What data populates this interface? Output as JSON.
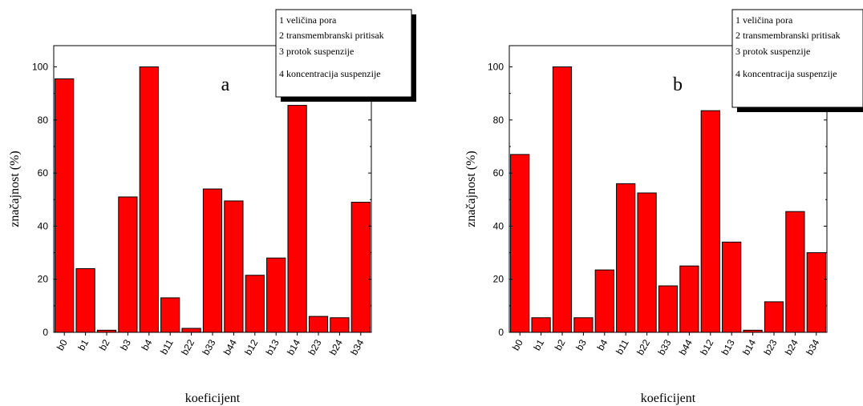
{
  "panels": [
    {
      "panel_label": "a",
      "legend": [
        "1 veličina pora",
        "2 transmembranski pritisak",
        "3 protok suspenzije",
        "4 koncentracija suspenzije"
      ]
    },
    {
      "panel_label": "b",
      "legend": [
        "1 veličina pora",
        "2 transmembranski pritisak",
        "3 protok suspenzije",
        "4 koncentracija suspenzije"
      ]
    }
  ],
  "chart_data": [
    {
      "type": "bar",
      "xlabel": "koeficijent",
      "ylabel": "značajnost (%)",
      "ylim": [
        0,
        108
      ],
      "yticks": [
        0,
        20,
        40,
        60,
        80,
        100
      ],
      "categories": [
        "b0",
        "b1",
        "b2",
        "b3",
        "b4",
        "b11",
        "b22",
        "b33",
        "b44",
        "b12",
        "b13",
        "b14",
        "b23",
        "b24",
        "b34"
      ],
      "values": [
        95.5,
        24,
        0.8,
        51,
        100,
        13,
        1.5,
        54,
        49.5,
        21.5,
        28,
        85.5,
        6,
        5.5,
        49
      ],
      "bar_color": "#ff0000",
      "legend_placement": "top-right"
    },
    {
      "type": "bar",
      "xlabel": "koeficijent",
      "ylabel": "značajnost (%)",
      "ylim": [
        0,
        108
      ],
      "yticks": [
        0,
        20,
        40,
        60,
        80,
        100
      ],
      "categories": [
        "b0",
        "b1",
        "b2",
        "b3",
        "b4",
        "b11",
        "b22",
        "b33",
        "b44",
        "b12",
        "b13",
        "b14",
        "b23",
        "b24",
        "b34"
      ],
      "values": [
        67,
        5.5,
        100,
        5.5,
        23.5,
        56,
        52.5,
        17.5,
        25,
        83.5,
        34,
        0.8,
        11.5,
        45.5,
        30
      ],
      "bar_color": "#ff0000",
      "legend_placement": "top-right"
    }
  ]
}
